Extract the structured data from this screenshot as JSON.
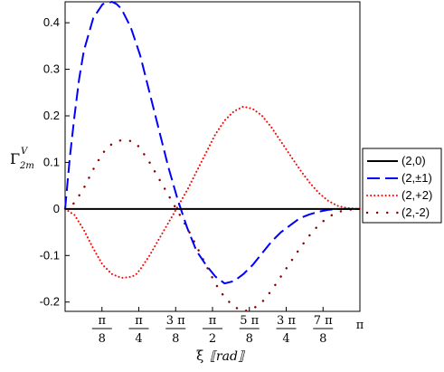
{
  "chart_data": {
    "type": "line",
    "xlabel_symbol": "ξ",
    "xlabel_unit": "⟦rad⟧",
    "ylabel_main": "Γ",
    "ylabel_sup": "V",
    "ylabel_sub": "2m",
    "xlim": [
      0,
      3.14159
    ],
    "ylim": [
      -0.22,
      0.445
    ],
    "y_ticks": [
      {
        "value": -0.2,
        "label": "-0.2"
      },
      {
        "value": -0.1,
        "label": "-0.1"
      },
      {
        "value": 0,
        "label": "0"
      },
      {
        "value": 0.1,
        "label": "0.1"
      },
      {
        "value": 0.2,
        "label": "0.2"
      },
      {
        "value": 0.3,
        "label": "0.3"
      },
      {
        "value": 0.4,
        "label": "0.4"
      }
    ],
    "x_ticks": [
      {
        "value": 0.3927,
        "num": "π",
        "den": "8"
      },
      {
        "value": 0.7854,
        "num": "π",
        "den": "4"
      },
      {
        "value": 1.1781,
        "num": "3 π",
        "den": "8"
      },
      {
        "value": 1.5708,
        "num": "π",
        "den": "2"
      },
      {
        "value": 1.9635,
        "num": "5 π",
        "den": "8"
      },
      {
        "value": 2.3562,
        "num": "3 π",
        "den": "4"
      },
      {
        "value": 2.7489,
        "num": "7 π",
        "den": "8"
      },
      {
        "value": 3.14159,
        "num": "π",
        "den": ""
      }
    ],
    "series": [
      {
        "name": "(2,0)",
        "color": "#000000",
        "style": "solid",
        "x": [
          0,
          0.3927,
          0.7854,
          1.1781,
          1.5708,
          1.9635,
          2.3562,
          2.7489,
          3.14159
        ],
        "y": [
          0,
          0,
          0,
          0,
          0,
          0,
          0,
          0,
          0
        ]
      },
      {
        "name": "(2,±1)",
        "color": "#0000ff",
        "style": "dash",
        "x": [
          0,
          0.05,
          0.1,
          0.15,
          0.2,
          0.3,
          0.4,
          0.5,
          0.55,
          0.6,
          0.7,
          0.8,
          0.9,
          1.0,
          1.1,
          1.2,
          1.3,
          1.4,
          1.5,
          1.6,
          1.7,
          1.8,
          1.9,
          2.0,
          2.1,
          2.2,
          2.3,
          2.4,
          2.5,
          2.6,
          2.7,
          2.8,
          2.9,
          3.0,
          3.1,
          3.14159
        ],
        "y": [
          0,
          0.11,
          0.2,
          0.28,
          0.34,
          0.41,
          0.44,
          0.445,
          0.44,
          0.43,
          0.39,
          0.33,
          0.25,
          0.17,
          0.09,
          0.02,
          -0.04,
          -0.09,
          -0.12,
          -0.145,
          -0.16,
          -0.155,
          -0.14,
          -0.12,
          -0.095,
          -0.07,
          -0.05,
          -0.035,
          -0.02,
          -0.012,
          -0.006,
          -0.002,
          0,
          0,
          0,
          0
        ]
      },
      {
        "name": "(2,+2)",
        "color": "#ff0000",
        "style": "dense-dot",
        "x": [
          0,
          0.1,
          0.2,
          0.3,
          0.4,
          0.5,
          0.6,
          0.7,
          0.75,
          0.8,
          0.9,
          1.0,
          1.1,
          1.2,
          1.3,
          1.4,
          1.5,
          1.6,
          1.7,
          1.8,
          1.9,
          2.0,
          2.1,
          2.2,
          2.3,
          2.4,
          2.5,
          2.6,
          2.7,
          2.8,
          2.9,
          3.0,
          3.14159
        ],
        "y": [
          0,
          -0.013,
          -0.045,
          -0.085,
          -0.12,
          -0.14,
          -0.148,
          -0.146,
          -0.142,
          -0.13,
          -0.1,
          -0.065,
          -0.03,
          0.005,
          0.04,
          0.08,
          0.12,
          0.16,
          0.19,
          0.21,
          0.22,
          0.215,
          0.2,
          0.175,
          0.145,
          0.115,
          0.085,
          0.058,
          0.035,
          0.018,
          0.007,
          0.002,
          0
        ]
      },
      {
        "name": "(2,-2)",
        "color": "#8b0000",
        "style": "sparse-dot",
        "x": [
          0,
          0.1,
          0.2,
          0.3,
          0.4,
          0.5,
          0.6,
          0.7,
          0.75,
          0.8,
          0.9,
          1.0,
          1.1,
          1.2,
          1.3,
          1.4,
          1.5,
          1.6,
          1.7,
          1.8,
          1.9,
          2.0,
          2.1,
          2.2,
          2.3,
          2.4,
          2.5,
          2.6,
          2.7,
          2.8,
          2.9,
          3.0,
          3.14159
        ],
        "y": [
          0,
          0.013,
          0.045,
          0.085,
          0.12,
          0.14,
          0.148,
          0.146,
          0.142,
          0.13,
          0.1,
          0.065,
          0.03,
          -0.005,
          -0.04,
          -0.08,
          -0.12,
          -0.16,
          -0.19,
          -0.21,
          -0.22,
          -0.215,
          -0.2,
          -0.175,
          -0.145,
          -0.115,
          -0.085,
          -0.058,
          -0.035,
          -0.018,
          -0.007,
          -0.002,
          0
        ]
      }
    ],
    "legend_position": "right"
  }
}
